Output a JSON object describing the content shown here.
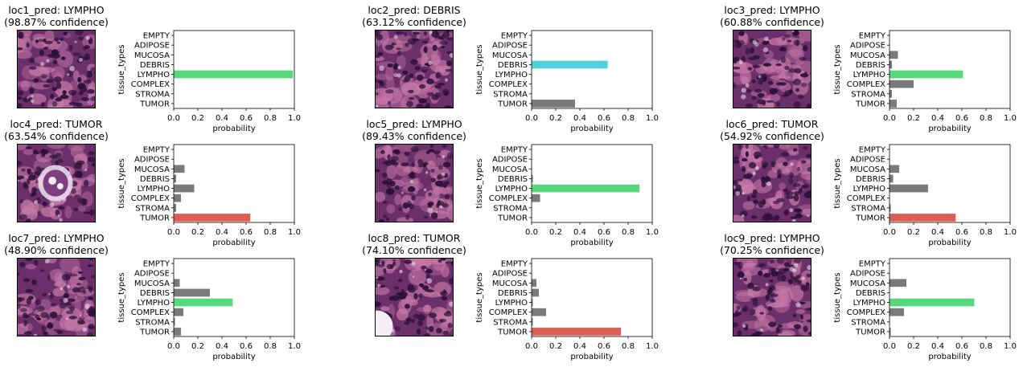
{
  "tissue_types": [
    "EMPTY",
    "ADIPOSE",
    "MUCOSA",
    "DEBRIS",
    "LYMPHO",
    "COMPLEX",
    "STROMA",
    "TUMOR"
  ],
  "colors": {
    "LYMPHO": "#56d87b",
    "DEBRIS": "#4fd1d9",
    "TUMOR": "#dc5f55",
    "other": "#7a7a7a",
    "tissue_bg": "#6b2f6b",
    "tissue_pink": "#c87aa8",
    "tissue_dark": "#2a1038",
    "tissue_light": "#f2e6f0"
  },
  "chart_data": [
    {
      "type": "bar",
      "title": "loc1_pred: LYMPHO",
      "subtitle": "(98.87% confidence)",
      "xlabel": "probability",
      "ylabel": "tissue_types",
      "xlim": [
        0,
        1
      ],
      "xticks": [
        "0.0",
        "0.2",
        "0.4",
        "0.6",
        "0.8",
        "1.0"
      ],
      "categories": [
        "EMPTY",
        "ADIPOSE",
        "MUCOSA",
        "DEBRIS",
        "LYMPHO",
        "COMPLEX",
        "STROMA",
        "TUMOR"
      ],
      "values": [
        0,
        0,
        0,
        0,
        0.989,
        0,
        0,
        0
      ],
      "highlight": "LYMPHO"
    },
    {
      "type": "bar",
      "title": "loc2_pred: DEBRIS",
      "subtitle": "(63.12% confidence)",
      "xlabel": "probability",
      "ylabel": "tissue_types",
      "xlim": [
        0,
        1
      ],
      "xticks": [
        "0.0",
        "0.2",
        "0.4",
        "0.6",
        "0.8",
        "1.0"
      ],
      "categories": [
        "EMPTY",
        "ADIPOSE",
        "MUCOSA",
        "DEBRIS",
        "LYMPHO",
        "COMPLEX",
        "STROMA",
        "TUMOR"
      ],
      "values": [
        0,
        0,
        0,
        0.631,
        0,
        0,
        0,
        0.36
      ],
      "highlight": "DEBRIS"
    },
    {
      "type": "bar",
      "title": "loc3_pred: LYMPHO",
      "subtitle": "(60.88% confidence)",
      "xlabel": "probability",
      "ylabel": "tissue_types",
      "xlim": [
        0,
        1
      ],
      "xticks": [
        "0.0",
        "0.2",
        "0.4",
        "0.6",
        "0.8",
        "1.0"
      ],
      "categories": [
        "EMPTY",
        "ADIPOSE",
        "MUCOSA",
        "DEBRIS",
        "LYMPHO",
        "COMPLEX",
        "STROMA",
        "TUMOR"
      ],
      "values": [
        0,
        0,
        0.07,
        0.02,
        0.609,
        0.2,
        0.02,
        0.06
      ],
      "highlight": "LYMPHO"
    },
    {
      "type": "bar",
      "title": "loc4_pred: TUMOR",
      "subtitle": "(63.54% confidence)",
      "xlabel": "probability",
      "ylabel": "tissue_types",
      "xlim": [
        0,
        1
      ],
      "xticks": [
        "0.0",
        "0.2",
        "0.4",
        "0.6",
        "0.8",
        "1.0"
      ],
      "categories": [
        "EMPTY",
        "ADIPOSE",
        "MUCOSA",
        "DEBRIS",
        "LYMPHO",
        "COMPLEX",
        "STROMA",
        "TUMOR"
      ],
      "values": [
        0,
        0,
        0.09,
        0.02,
        0.17,
        0.06,
        0.02,
        0.635
      ],
      "highlight": "TUMOR"
    },
    {
      "type": "bar",
      "title": "loc5_pred: LYMPHO",
      "subtitle": "(89.43% confidence)",
      "xlabel": "probability",
      "ylabel": "tissue_types",
      "xlim": [
        0,
        1
      ],
      "xticks": [
        "0.0",
        "0.2",
        "0.4",
        "0.6",
        "0.8",
        "1.0"
      ],
      "categories": [
        "EMPTY",
        "ADIPOSE",
        "MUCOSA",
        "DEBRIS",
        "LYMPHO",
        "COMPLEX",
        "STROMA",
        "TUMOR"
      ],
      "values": [
        0,
        0,
        0,
        0.01,
        0.894,
        0.07,
        0,
        0
      ],
      "highlight": "LYMPHO"
    },
    {
      "type": "bar",
      "title": "loc6_pred: TUMOR",
      "subtitle": "(54.92% confidence)",
      "xlabel": "probability",
      "ylabel": "tissue_types",
      "xlim": [
        0,
        1
      ],
      "xticks": [
        "0.0",
        "0.2",
        "0.4",
        "0.6",
        "0.8",
        "1.0"
      ],
      "categories": [
        "EMPTY",
        "ADIPOSE",
        "MUCOSA",
        "DEBRIS",
        "LYMPHO",
        "COMPLEX",
        "STROMA",
        "TUMOR"
      ],
      "values": [
        0,
        0,
        0.08,
        0.03,
        0.32,
        0,
        0.01,
        0.549
      ],
      "highlight": "TUMOR"
    },
    {
      "type": "bar",
      "title": "loc7_pred: LYMPHO",
      "subtitle": "(48.90% confidence)",
      "xlabel": "probability",
      "ylabel": "tissue_types",
      "xlim": [
        0,
        1
      ],
      "xticks": [
        "0.0",
        "0.2",
        "0.4",
        "0.6",
        "0.8",
        "1.0"
      ],
      "categories": [
        "EMPTY",
        "ADIPOSE",
        "MUCOSA",
        "DEBRIS",
        "LYMPHO",
        "COMPLEX",
        "STROMA",
        "TUMOR"
      ],
      "values": [
        0,
        0,
        0.05,
        0.3,
        0.489,
        0.08,
        0.01,
        0.06
      ],
      "highlight": "LYMPHO"
    },
    {
      "type": "bar",
      "title": "loc8_pred: TUMOR",
      "subtitle": "(74.10% confidence)",
      "xlabel": "probability",
      "ylabel": "tissue_types",
      "xlim": [
        0,
        1
      ],
      "xticks": [
        "0.0",
        "0.2",
        "0.4",
        "0.6",
        "0.8",
        "1.0"
      ],
      "categories": [
        "EMPTY",
        "ADIPOSE",
        "MUCOSA",
        "DEBRIS",
        "LYMPHO",
        "COMPLEX",
        "STROMA",
        "TUMOR"
      ],
      "values": [
        0,
        0,
        0.04,
        0.06,
        0.01,
        0.12,
        0.01,
        0.741
      ],
      "highlight": "TUMOR"
    },
    {
      "type": "bar",
      "title": "loc9_pred: LYMPHO",
      "subtitle": "(70.25% confidence)",
      "xlabel": "probability",
      "ylabel": "tissue_types",
      "xlim": [
        0,
        1
      ],
      "xticks": [
        "0.0",
        "0.2",
        "0.4",
        "0.6",
        "0.8",
        "1.0"
      ],
      "categories": [
        "EMPTY",
        "ADIPOSE",
        "MUCOSA",
        "DEBRIS",
        "LYMPHO",
        "COMPLEX",
        "STROMA",
        "TUMOR"
      ],
      "values": [
        0,
        0,
        0.14,
        0,
        0.703,
        0.12,
        0,
        0.01
      ],
      "highlight": "LYMPHO"
    }
  ]
}
